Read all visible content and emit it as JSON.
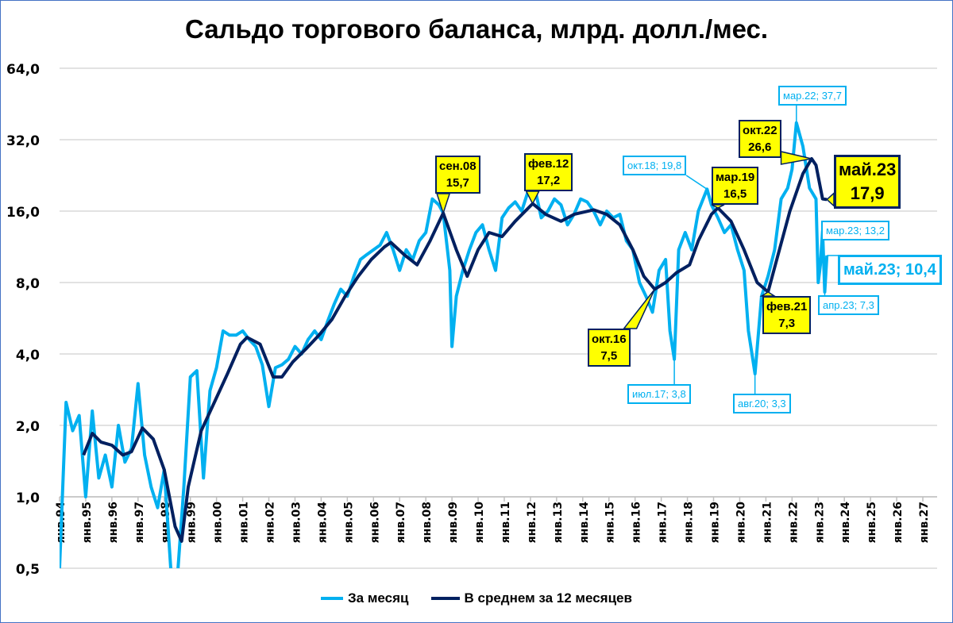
{
  "chart_data": {
    "type": "line",
    "title": "Сальдо торгового баланса, млрд. долл./мес.",
    "y_scale": "log2",
    "ylim": [
      0.5,
      64
    ],
    "y_ticks": [
      "0,5",
      "1,0",
      "2,0",
      "4,0",
      "8,0",
      "16,0",
      "32,0",
      "64,0"
    ],
    "y_tick_values": [
      0.5,
      1,
      2,
      4,
      8,
      16,
      32,
      64
    ],
    "x_ticks": [
      "янв.94",
      "янв.95",
      "янв.96",
      "янв.97",
      "янв.98",
      "янв.99",
      "янв.00",
      "янв.01",
      "янв.02",
      "янв.03",
      "янв.04",
      "янв.05",
      "янв.06",
      "янв.07",
      "янв.08",
      "янв.09",
      "янв.10",
      "янв.11",
      "янв.12",
      "янв.13",
      "янв.14",
      "янв.15",
      "янв.16",
      "янв.17",
      "янв.18",
      "янв.19",
      "янв.20",
      "янв.21",
      "янв.22",
      "янв.23",
      "янв.24",
      "янв.25",
      "янв.26",
      "янв.27"
    ],
    "xlim": [
      "1994-01",
      "2027-12"
    ],
    "grid": true,
    "legend_position": "bottom",
    "colors": {
      "monthly": "#00b0f0",
      "avg12": "#002060",
      "callout_fill": "#ffff00"
    },
    "series": [
      {
        "name": "За месяц",
        "points": [
          [
            "1994-01",
            0.5
          ],
          [
            "1994-04",
            2.5
          ],
          [
            "1994-07",
            1.9
          ],
          [
            "1994-10",
            2.2
          ],
          [
            "1995-01",
            1.0
          ],
          [
            "1995-04",
            2.3
          ],
          [
            "1995-07",
            1.2
          ],
          [
            "1995-10",
            1.5
          ],
          [
            "1996-01",
            1.1
          ],
          [
            "1996-04",
            2.0
          ],
          [
            "1996-07",
            1.4
          ],
          [
            "1996-10",
            1.6
          ],
          [
            "1997-01",
            3.0
          ],
          [
            "1997-04",
            1.5
          ],
          [
            "1997-07",
            1.1
          ],
          [
            "1997-10",
            0.9
          ],
          [
            "1998-01",
            1.3
          ],
          [
            "1998-04",
            0.5
          ],
          [
            "1998-07",
            0.45
          ],
          [
            "1998-10",
            1.1
          ],
          [
            "1999-01",
            3.2
          ],
          [
            "1999-04",
            3.4
          ],
          [
            "1999-07",
            1.2
          ],
          [
            "1999-10",
            2.8
          ],
          [
            "2000-01",
            3.5
          ],
          [
            "2000-04",
            5.0
          ],
          [
            "2000-07",
            4.8
          ],
          [
            "2000-10",
            4.8
          ],
          [
            "2001-01",
            5.0
          ],
          [
            "2001-04",
            4.6
          ],
          [
            "2001-07",
            4.3
          ],
          [
            "2001-10",
            3.6
          ],
          [
            "2002-01",
            2.4
          ],
          [
            "2002-04",
            3.5
          ],
          [
            "2002-07",
            3.6
          ],
          [
            "2002-10",
            3.8
          ],
          [
            "2003-01",
            4.3
          ],
          [
            "2003-04",
            4.0
          ],
          [
            "2003-07",
            4.6
          ],
          [
            "2003-10",
            5.0
          ],
          [
            "2004-01",
            4.6
          ],
          [
            "2004-04",
            5.5
          ],
          [
            "2004-07",
            6.5
          ],
          [
            "2004-10",
            7.5
          ],
          [
            "2005-01",
            7.0
          ],
          [
            "2005-04",
            8.5
          ],
          [
            "2005-07",
            10.0
          ],
          [
            "2005-10",
            10.5
          ],
          [
            "2006-01",
            11.0
          ],
          [
            "2006-04",
            11.5
          ],
          [
            "2006-07",
            13.0
          ],
          [
            "2006-10",
            11.0
          ],
          [
            "2007-01",
            9.0
          ],
          [
            "2007-04",
            11.0
          ],
          [
            "2007-07",
            10.0
          ],
          [
            "2007-10",
            12.0
          ],
          [
            "2008-01",
            13.0
          ],
          [
            "2008-04",
            18.0
          ],
          [
            "2008-07",
            17.0
          ],
          [
            "2008-09",
            15.7
          ],
          [
            "2008-12",
            9.0
          ],
          [
            "2009-01",
            4.3
          ],
          [
            "2009-03",
            7.0
          ],
          [
            "2009-06",
            9.0
          ],
          [
            "2009-09",
            11.0
          ],
          [
            "2009-12",
            13.0
          ],
          [
            "2010-03",
            14.0
          ],
          [
            "2010-06",
            11.0
          ],
          [
            "2010-09",
            9.0
          ],
          [
            "2010-12",
            15.0
          ],
          [
            "2011-03",
            16.5
          ],
          [
            "2011-06",
            17.5
          ],
          [
            "2011-09",
            16.0
          ],
          [
            "2011-12",
            19.5
          ],
          [
            "2012-03",
            20.0
          ],
          [
            "2012-06",
            15.0
          ],
          [
            "2012-09",
            16.0
          ],
          [
            "2012-12",
            18.0
          ],
          [
            "2013-03",
            17.0
          ],
          [
            "2013-06",
            14.0
          ],
          [
            "2013-09",
            15.5
          ],
          [
            "2013-12",
            18.0
          ],
          [
            "2014-03",
            17.5
          ],
          [
            "2014-06",
            16.0
          ],
          [
            "2014-09",
            14.0
          ],
          [
            "2014-12",
            16.0
          ],
          [
            "2015-03",
            15.0
          ],
          [
            "2015-06",
            15.5
          ],
          [
            "2015-09",
            12.0
          ],
          [
            "2015-12",
            11.0
          ],
          [
            "2016-03",
            8.0
          ],
          [
            "2016-06",
            7.0
          ],
          [
            "2016-09",
            6.0
          ],
          [
            "2016-12",
            9.0
          ],
          [
            "2017-03",
            10.0
          ],
          [
            "2017-05",
            5.0
          ],
          [
            "2017-07",
            3.8
          ],
          [
            "2017-09",
            11.0
          ],
          [
            "2017-12",
            13.0
          ],
          [
            "2018-03",
            11.0
          ],
          [
            "2018-06",
            16.0
          ],
          [
            "2018-10",
            19.8
          ],
          [
            "2018-12",
            17.0
          ],
          [
            "2019-03",
            15.0
          ],
          [
            "2019-06",
            13.0
          ],
          [
            "2019-09",
            14.0
          ],
          [
            "2019-12",
            11.0
          ],
          [
            "2020-03",
            9.0
          ],
          [
            "2020-05",
            5.0
          ],
          [
            "2020-08",
            3.3
          ],
          [
            "2020-11",
            7.0
          ],
          [
            "2021-02",
            8.5
          ],
          [
            "2021-05",
            11.0
          ],
          [
            "2021-08",
            18.0
          ],
          [
            "2021-11",
            20.0
          ],
          [
            "2022-01",
            24.0
          ],
          [
            "2022-03",
            37.7
          ],
          [
            "2022-06",
            30.0
          ],
          [
            "2022-09",
            20.0
          ],
          [
            "2022-12",
            18.0
          ],
          [
            "2023-01",
            8.0
          ],
          [
            "2023-02",
            9.5
          ],
          [
            "2023-03",
            13.2
          ],
          [
            "2023-04",
            7.3
          ],
          [
            "2023-05",
            10.4
          ]
        ]
      },
      {
        "name": "В среднем за 12 месяцев",
        "points": [
          [
            "1994-12",
            1.5
          ],
          [
            "1995-04",
            1.85
          ],
          [
            "1995-08",
            1.7
          ],
          [
            "1996-01",
            1.65
          ],
          [
            "1996-06",
            1.5
          ],
          [
            "1996-10",
            1.55
          ],
          [
            "1997-03",
            1.95
          ],
          [
            "1997-08",
            1.75
          ],
          [
            "1998-01",
            1.3
          ],
          [
            "1998-06",
            0.75
          ],
          [
            "1998-09",
            0.65
          ],
          [
            "1998-12",
            1.1
          ],
          [
            "1999-06",
            1.9
          ],
          [
            "1999-12",
            2.5
          ],
          [
            "2000-06",
            3.3
          ],
          [
            "2000-12",
            4.4
          ],
          [
            "2001-03",
            4.7
          ],
          [
            "2001-09",
            4.4
          ],
          [
            "2002-03",
            3.2
          ],
          [
            "2002-07",
            3.2
          ],
          [
            "2002-12",
            3.7
          ],
          [
            "2003-06",
            4.2
          ],
          [
            "2003-12",
            4.8
          ],
          [
            "2004-06",
            5.6
          ],
          [
            "2004-12",
            7.0
          ],
          [
            "2005-06",
            8.5
          ],
          [
            "2005-12",
            10.0
          ],
          [
            "2006-06",
            11.3
          ],
          [
            "2006-09",
            11.8
          ],
          [
            "2007-03",
            10.5
          ],
          [
            "2007-09",
            9.5
          ],
          [
            "2008-03",
            12.0
          ],
          [
            "2008-09",
            15.7
          ],
          [
            "2009-03",
            11.0
          ],
          [
            "2009-08",
            8.5
          ],
          [
            "2010-01",
            11.0
          ],
          [
            "2010-06",
            13.0
          ],
          [
            "2010-12",
            12.5
          ],
          [
            "2011-06",
            14.5
          ],
          [
            "2012-02",
            17.2
          ],
          [
            "2012-08",
            15.5
          ],
          [
            "2013-03",
            14.5
          ],
          [
            "2013-09",
            15.5
          ],
          [
            "2014-06",
            16.2
          ],
          [
            "2014-12",
            15.5
          ],
          [
            "2015-06",
            14.0
          ],
          [
            "2015-12",
            11.0
          ],
          [
            "2016-05",
            8.5
          ],
          [
            "2016-10",
            7.5
          ],
          [
            "2017-03",
            8.0
          ],
          [
            "2017-08",
            8.8
          ],
          [
            "2018-02",
            9.5
          ],
          [
            "2018-06",
            12.0
          ],
          [
            "2018-12",
            15.5
          ],
          [
            "2019-03",
            16.5
          ],
          [
            "2019-09",
            14.5
          ],
          [
            "2020-03",
            11.0
          ],
          [
            "2020-09",
            8.0
          ],
          [
            "2021-02",
            7.3
          ],
          [
            "2021-06",
            10.0
          ],
          [
            "2021-12",
            16.0
          ],
          [
            "2022-06",
            23.0
          ],
          [
            "2022-10",
            26.6
          ],
          [
            "2022-12",
            25.0
          ],
          [
            "2023-03",
            18.0
          ],
          [
            "2023-05",
            17.9
          ]
        ]
      }
    ],
    "annotations": [
      {
        "series": 1,
        "date": "2008-09",
        "value": 15.7,
        "line1": "сен.08",
        "line2": "15,7"
      },
      {
        "series": 1,
        "date": "2012-02",
        "value": 17.2,
        "line1": "фев.12",
        "line2": "17,2"
      },
      {
        "series": 1,
        "date": "2016-10",
        "value": 7.5,
        "line1": "окт.16",
        "line2": "7,5"
      },
      {
        "series": 1,
        "date": "2019-03",
        "value": 16.5,
        "line1": "мар.19",
        "line2": "16,5"
      },
      {
        "series": 1,
        "date": "2022-10",
        "value": 26.6,
        "line1": "окт.22",
        "line2": "26,6"
      },
      {
        "series": 1,
        "date": "2021-02",
        "value": 7.3,
        "line1": "фев.21",
        "line2": "7,3"
      },
      {
        "series": 1,
        "date": "2023-05",
        "value": 17.9,
        "line1": "май.23",
        "line2": "17,9",
        "emphasis": true
      },
      {
        "series": 0,
        "date": "2018-10",
        "value": 19.8,
        "line1": "окт.18; 19,8"
      },
      {
        "series": 0,
        "date": "2022-03",
        "value": 37.7,
        "line1": "мар.22; 37,7"
      },
      {
        "series": 0,
        "date": "2017-07",
        "value": 3.8,
        "line1": "июл.17; 3,8"
      },
      {
        "series": 0,
        "date": "2020-08",
        "value": 3.3,
        "line1": "авг.20; 3,3"
      },
      {
        "series": 0,
        "date": "2023-03",
        "value": 13.2,
        "line1": "мар.23; 13,2"
      },
      {
        "series": 0,
        "date": "2023-05",
        "value": 10.4,
        "line1": "май.23; 10,4",
        "emphasis": true
      },
      {
        "series": 0,
        "date": "2023-04",
        "value": 7.3,
        "line1": "апр.23; 7,3"
      }
    ]
  }
}
